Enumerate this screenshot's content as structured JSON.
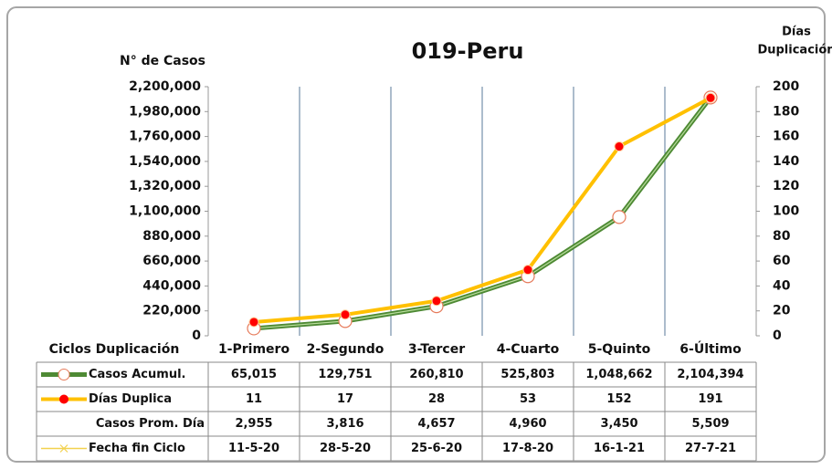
{
  "chart_data": {
    "type": "line",
    "title": "019-Peru",
    "y_label": "N° de Casos",
    "y2_label_lines": [
      "Días",
      "Duplicación"
    ],
    "table_header": "Ciclos Duplicación",
    "categories": [
      "1-Primero",
      "2-Segundo",
      "3-Tercer",
      "4-Cuarto",
      "5-Quinto",
      "6-Último"
    ],
    "ylim": [
      0,
      2200000
    ],
    "yticks": [
      {
        "value": 0,
        "label": "0"
      },
      {
        "value": 220000,
        "label": "220,000"
      },
      {
        "value": 440000,
        "label": "440,000"
      },
      {
        "value": 660000,
        "label": "660,000"
      },
      {
        "value": 880000,
        "label": "880,000"
      },
      {
        "value": 1100000,
        "label": "1,100,000"
      },
      {
        "value": 1320000,
        "label": "1,320,000"
      },
      {
        "value": 1540000,
        "label": "1,540,000"
      },
      {
        "value": 1760000,
        "label": "1,760,000"
      },
      {
        "value": 1980000,
        "label": "1,980,000"
      },
      {
        "value": 2200000,
        "label": "2,200,000"
      }
    ],
    "y2lim": [
      0,
      200
    ],
    "y2ticks": [
      0,
      20,
      40,
      60,
      80,
      100,
      120,
      140,
      160,
      180,
      200
    ],
    "grid": true,
    "series": [
      {
        "name": "Casos Acumul.",
        "color": "#4e8a34",
        "axis": "y",
        "values": [
          65015,
          129751,
          260810,
          525803,
          1048662,
          2104394
        ],
        "value_labels": [
          "65,015",
          "129,751",
          "260,810",
          "525,803",
          "1,048,662",
          "2,104,394"
        ]
      },
      {
        "name": "Días Duplica",
        "color": "#ffc000",
        "axis": "y2",
        "values": [
          11,
          17,
          28,
          53,
          152,
          191
        ]
      },
      {
        "name": "Casos Prom. Día",
        "values": [
          2955,
          3816,
          4657,
          4960,
          3450,
          5509
        ],
        "value_labels": [
          "2,955",
          "3,816",
          "4,657",
          "4,960",
          "3,450",
          "5,509"
        ]
      },
      {
        "name": "Fecha fin Ciclo",
        "color": "#f2d14e",
        "labels": [
          "11-5-20",
          "28-5-20",
          "25-6-20",
          "17-8-20",
          "16-1-21",
          "27-7-21"
        ]
      }
    ]
  }
}
